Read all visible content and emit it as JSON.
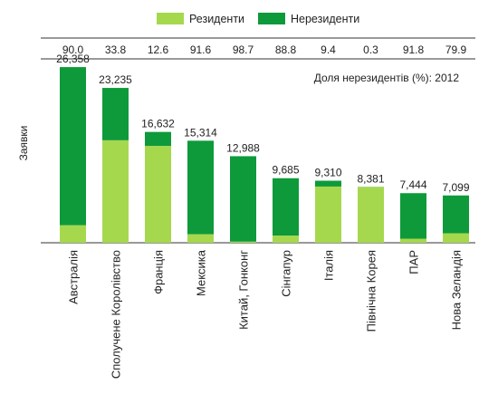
{
  "chart_data": {
    "type": "bar",
    "stacked": true,
    "ylabel": "Заявки",
    "categories": [
      "Австралія",
      "Сполучене Королівство",
      "Франція",
      "Мексика",
      "Китай, Гонконг",
      "Сінгапур",
      "Італія",
      "Північна Корея",
      "ПАР",
      "Нова Зеландія"
    ],
    "totals_labels": [
      "26,358",
      "23,235",
      "16,632",
      "15,314",
      "12,988",
      "9,685",
      "9,310",
      "8,381",
      "7,444",
      "7,099"
    ],
    "totals": [
      26358,
      23235,
      16632,
      15314,
      12988,
      9685,
      9310,
      8381,
      7444,
      7099
    ],
    "nonresident_share_labels": [
      "90.0",
      "33.8",
      "12.6",
      "91.6",
      "98.7",
      "88.8",
      "9.4",
      "0.3",
      "91.8",
      "79.9"
    ],
    "nonresident_share": [
      90.0,
      33.8,
      12.6,
      91.6,
      98.7,
      88.8,
      9.4,
      0.3,
      91.8,
      79.9
    ],
    "share_caption": "Доля нерезидентів  (%): 2012",
    "series": [
      {
        "name": "Резиденти",
        "color": "#a6d84e"
      },
      {
        "name": "Нерезиденти",
        "color": "#0e9a3a"
      }
    ],
    "ylim": [
      0,
      28000
    ],
    "grid": false,
    "legend": "top"
  }
}
